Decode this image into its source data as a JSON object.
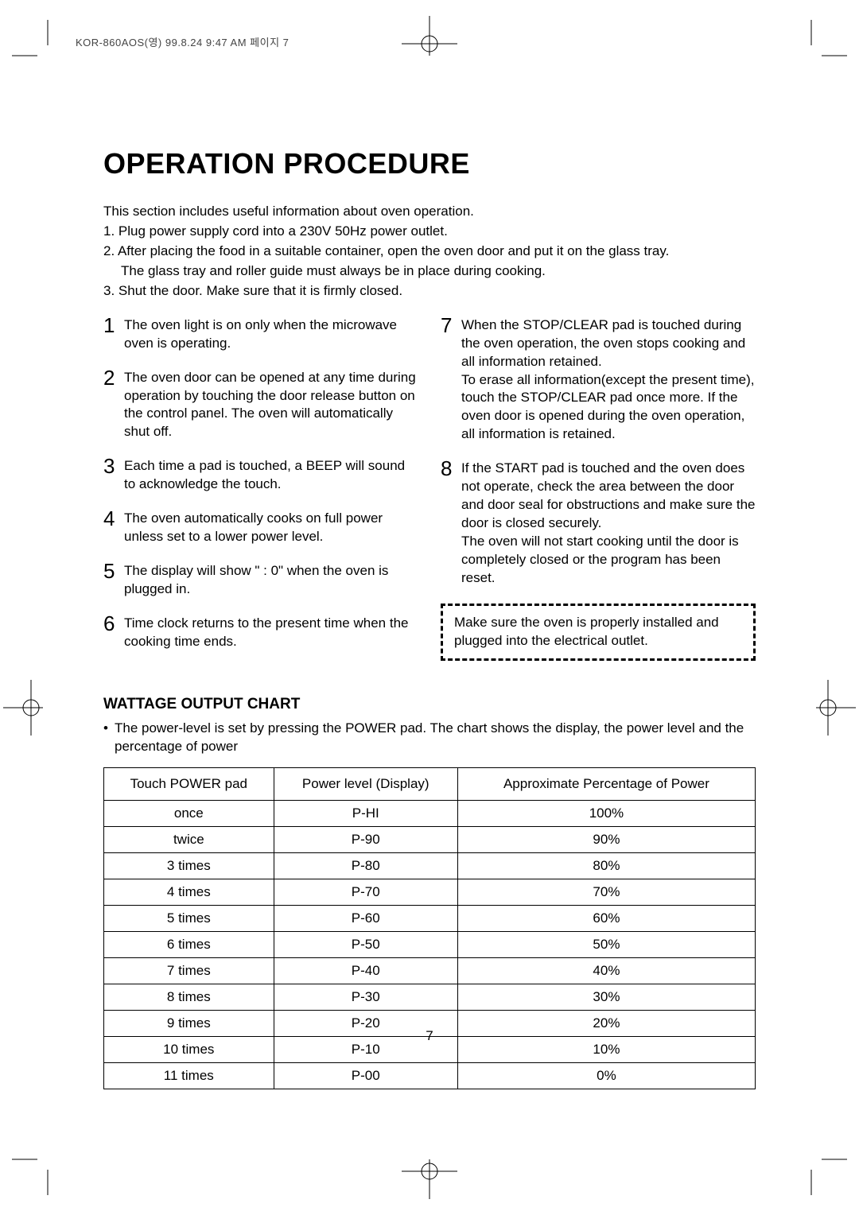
{
  "header_stamp": "KOR-860AOS(영)  99.8.24 9:47 AM  페이지 7",
  "title": "OPERATION PROCEDURE",
  "intro": {
    "lead": "This section includes useful information about oven operation.",
    "l1": "1. Plug power supply cord into a 230V 50Hz power outlet.",
    "l2": "2. After placing the food in a suitable container, open the oven door and put it on the glass tray.",
    "l2b": "The glass tray and roller guide must always be in place during cooking.",
    "l3": "3. Shut the door. Make sure that it is firmly closed."
  },
  "left_notes": [
    {
      "n": "1",
      "t": "The oven light is on only when the microwave oven is operating."
    },
    {
      "n": "2",
      "t": "The oven door can be opened at any time during operation by touching the door release button on the control panel. The oven will automatically shut off."
    },
    {
      "n": "3",
      "t": "Each time a pad is touched, a BEEP will sound to acknowledge the touch."
    },
    {
      "n": "4",
      "t": "The oven automatically cooks on full power unless set to a lower power level."
    },
    {
      "n": "5",
      "t": "The display will show \" : 0\" when the oven is plugged in."
    },
    {
      "n": "6",
      "t": "Time clock returns to the present time when the cooking time ends."
    }
  ],
  "right_notes": [
    {
      "n": "7",
      "t": "When the STOP/CLEAR pad is touched during the oven operation, the oven stops cooking and all information retained.\nTo erase all information(except the present time), touch the  STOP/CLEAR pad once more. If the oven door is opened during the oven operation, all information is retained."
    },
    {
      "n": "8",
      "t": "If the START pad is touched and the oven does not operate, check the area between the door and door seal for obstructions and make sure the door is closed securely.\nThe oven will not start cooking until the door is completely closed or the program has been reset."
    }
  ],
  "note_box": "Make sure the oven is properly installed and plugged into the electrical outlet.",
  "wattage": {
    "heading": "WATTAGE OUTPUT CHART",
    "bullet": "The power-level is set by pressing the POWER pad. The chart shows the display, the power level and the percentage of power",
    "columns": [
      "Touch POWER pad",
      "Power level (Display)",
      "Approximate Percentage of Power"
    ],
    "rows": [
      [
        "once",
        "P-HI",
        "100%"
      ],
      [
        "twice",
        "P-90",
        "90%"
      ],
      [
        "3 times",
        "P-80",
        "80%"
      ],
      [
        "4 times",
        "P-70",
        "70%"
      ],
      [
        "5 times",
        "P-60",
        "60%"
      ],
      [
        "6 times",
        "P-50",
        "50%"
      ],
      [
        "7 times",
        "P-40",
        "40%"
      ],
      [
        "8 times",
        "P-30",
        "30%"
      ],
      [
        "9 times",
        "P-20",
        "20%"
      ],
      [
        "10 times",
        "P-10",
        "10%"
      ],
      [
        "11 times",
        "P-00",
        "0%"
      ]
    ]
  },
  "page_number": "7"
}
